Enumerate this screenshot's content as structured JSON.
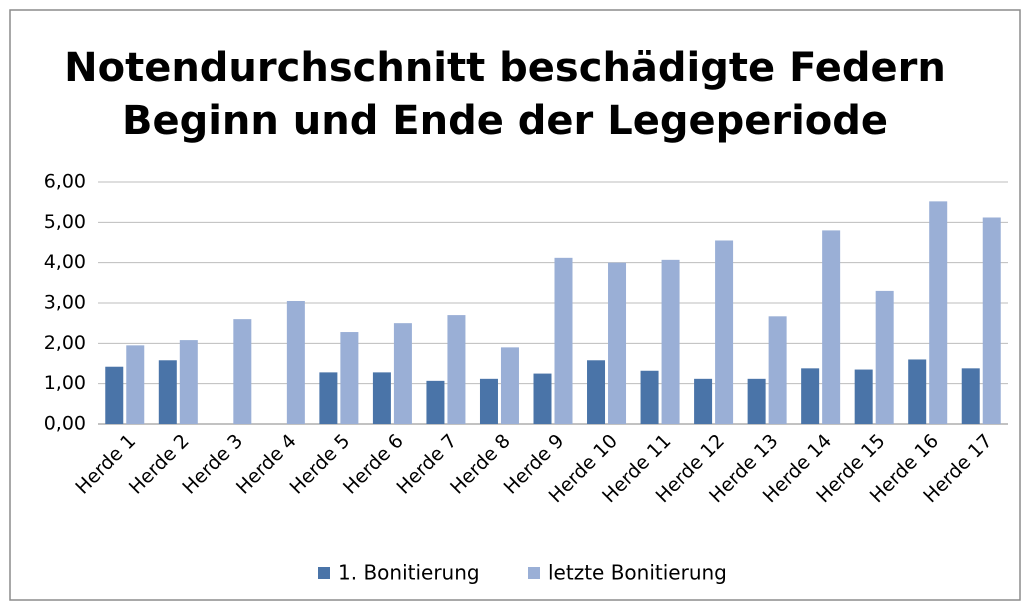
{
  "chart_data": {
    "type": "bar",
    "title": [
      "Notendurchschnitt beschädigte Federn",
      "Beginn und Ende der Legeperiode"
    ],
    "categories": [
      "Herde 1",
      "Herde 2",
      "Herde 3",
      "Herde 4",
      "Herde 5",
      "Herde 6",
      "Herde 7",
      "Herde 8",
      "Herde 9",
      "Herde 10",
      "Herde 11",
      "Herde 12",
      "Herde 13",
      "Herde 14",
      "Herde 15",
      "Herde 16",
      "Herde 17"
    ],
    "series": [
      {
        "name": "1. Bonitierung",
        "color": "#4a74a8",
        "values": [
          1.42,
          1.58,
          null,
          null,
          1.28,
          1.28,
          1.07,
          1.12,
          1.25,
          1.58,
          1.32,
          1.12,
          1.12,
          1.38,
          1.35,
          1.6,
          1.38
        ]
      },
      {
        "name": "letzte Bonitierung",
        "color": "#9aafd6",
        "values": [
          1.95,
          2.08,
          2.6,
          3.05,
          2.28,
          2.5,
          2.7,
          1.9,
          4.12,
          4.0,
          4.07,
          4.55,
          2.67,
          4.8,
          3.3,
          5.52,
          5.12
        ]
      }
    ],
    "ylim": [
      0,
      6
    ],
    "yticks": [
      {
        "value": 0,
        "label": "0,00"
      },
      {
        "value": 1,
        "label": "1,00"
      },
      {
        "value": 2,
        "label": "2,00"
      },
      {
        "value": 3,
        "label": "3,00"
      },
      {
        "value": 4,
        "label": "4,00"
      },
      {
        "value": 5,
        "label": "5,00"
      },
      {
        "value": 6,
        "label": "6,00"
      }
    ],
    "grid": true,
    "legend": "bottom"
  }
}
